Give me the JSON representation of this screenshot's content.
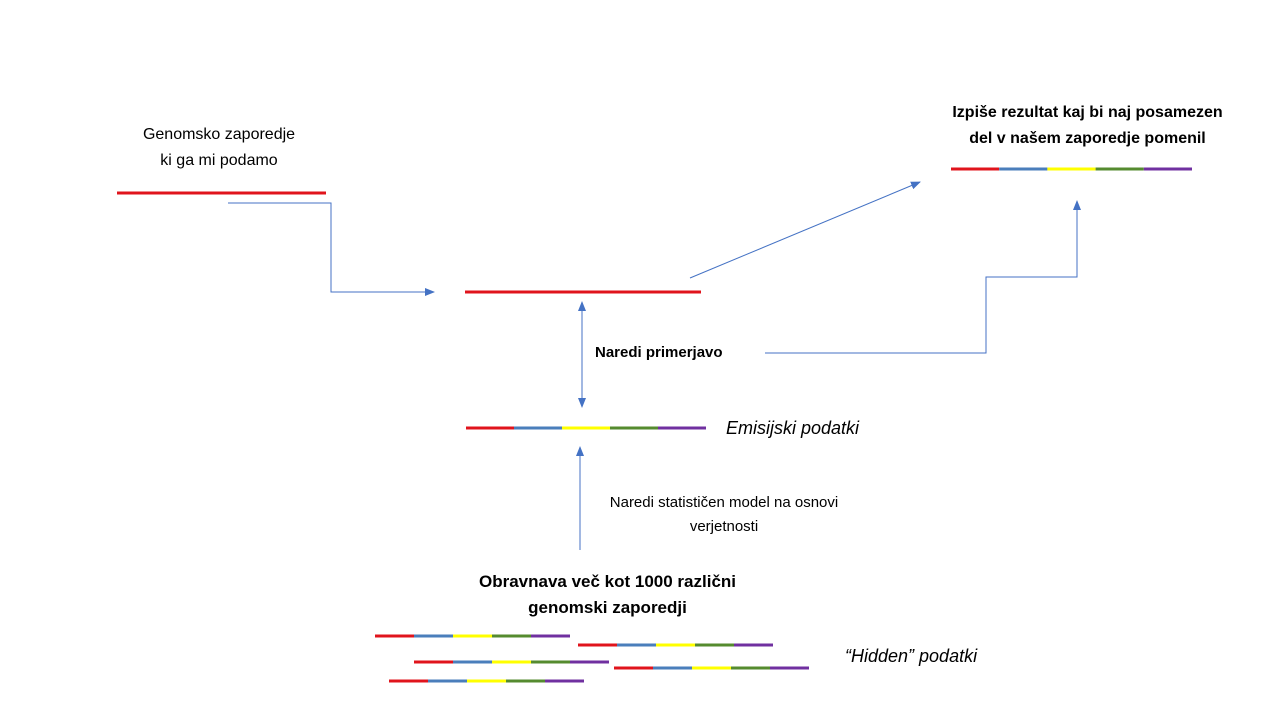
{
  "labels": {
    "input_line1": "Genomsko  zaporedje",
    "input_line2": "ki ga mi podamo",
    "output_line1": "Izpiše rezultat kaj bi naj posamezen",
    "output_line2": "del v našem zaporedje  pomenil",
    "compare": "Naredi primerjavo",
    "emission": "Emisijski podatki",
    "model_line1": "Naredi statističen model na osnovi",
    "model_line2": "verjetnosti",
    "training_line1": "Obravnava  več kot 1000 različni",
    "training_line2": "genomski  zaporedji",
    "hidden": "“Hidden” podatki"
  },
  "colors": {
    "red": "#e0141c",
    "blue": "#4a7ebb",
    "yellow": "#ffff00",
    "green": "#558b2f",
    "purple": "#7030a0",
    "arrow": "#4472c4"
  },
  "segment_order": [
    "red",
    "blue",
    "yellow",
    "green",
    "purple"
  ]
}
